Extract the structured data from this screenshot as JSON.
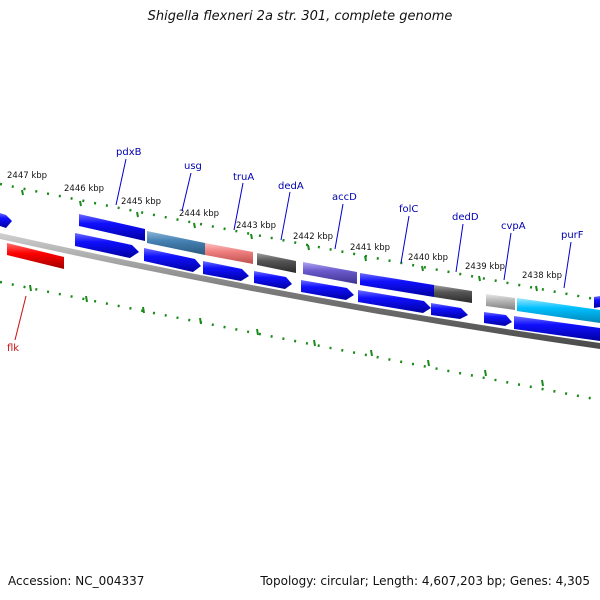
{
  "title": "Shigella flexneri 2a str. 301, complete genome",
  "footer": {
    "accession": "Accession: NC_004337",
    "summary": "Topology: circular; Length: 4,607,203 bp; Genes: 4,305"
  },
  "colors": {
    "backbone": "#7a7a7a",
    "tick": "#1a8a1a",
    "tick_label": "#111111",
    "gene_label": "#0000b0",
    "flk_label": "#cc1111"
  },
  "ruler": {
    "unit": "kbp",
    "ticks": [
      {
        "kbp": 2447,
        "label": "2447 kbp"
      },
      {
        "kbp": 2446,
        "label": "2446 kbp"
      },
      {
        "kbp": 2445,
        "label": "2445 kbp"
      },
      {
        "kbp": 2444,
        "label": "2444 kbp"
      },
      {
        "kbp": 2443,
        "label": "2443 kbp"
      },
      {
        "kbp": 2442,
        "label": "2442 kbp"
      },
      {
        "kbp": 2441,
        "label": "2441 kbp"
      },
      {
        "kbp": 2440,
        "label": "2440 kbp"
      },
      {
        "kbp": 2439,
        "label": "2439 kbp"
      },
      {
        "kbp": 2438,
        "label": "2438 kbp"
      }
    ]
  },
  "genes": [
    {
      "name": "pdxB",
      "color": "#0000ff"
    },
    {
      "name": "usg",
      "color": "#4682b4"
    },
    {
      "name": "truA",
      "color": "#f08080"
    },
    {
      "name": "dedA",
      "color": "#505050"
    },
    {
      "name": "accD",
      "color": "#6a5acd"
    },
    {
      "name": "folC",
      "color": "#0000ff"
    },
    {
      "name": "dedD",
      "color": "#505050"
    },
    {
      "name": "cvpA",
      "color": "#b0b0b0"
    },
    {
      "name": "purF",
      "color": "#00bfff"
    },
    {
      "name": "flk",
      "color": "#ff0000"
    }
  ]
}
